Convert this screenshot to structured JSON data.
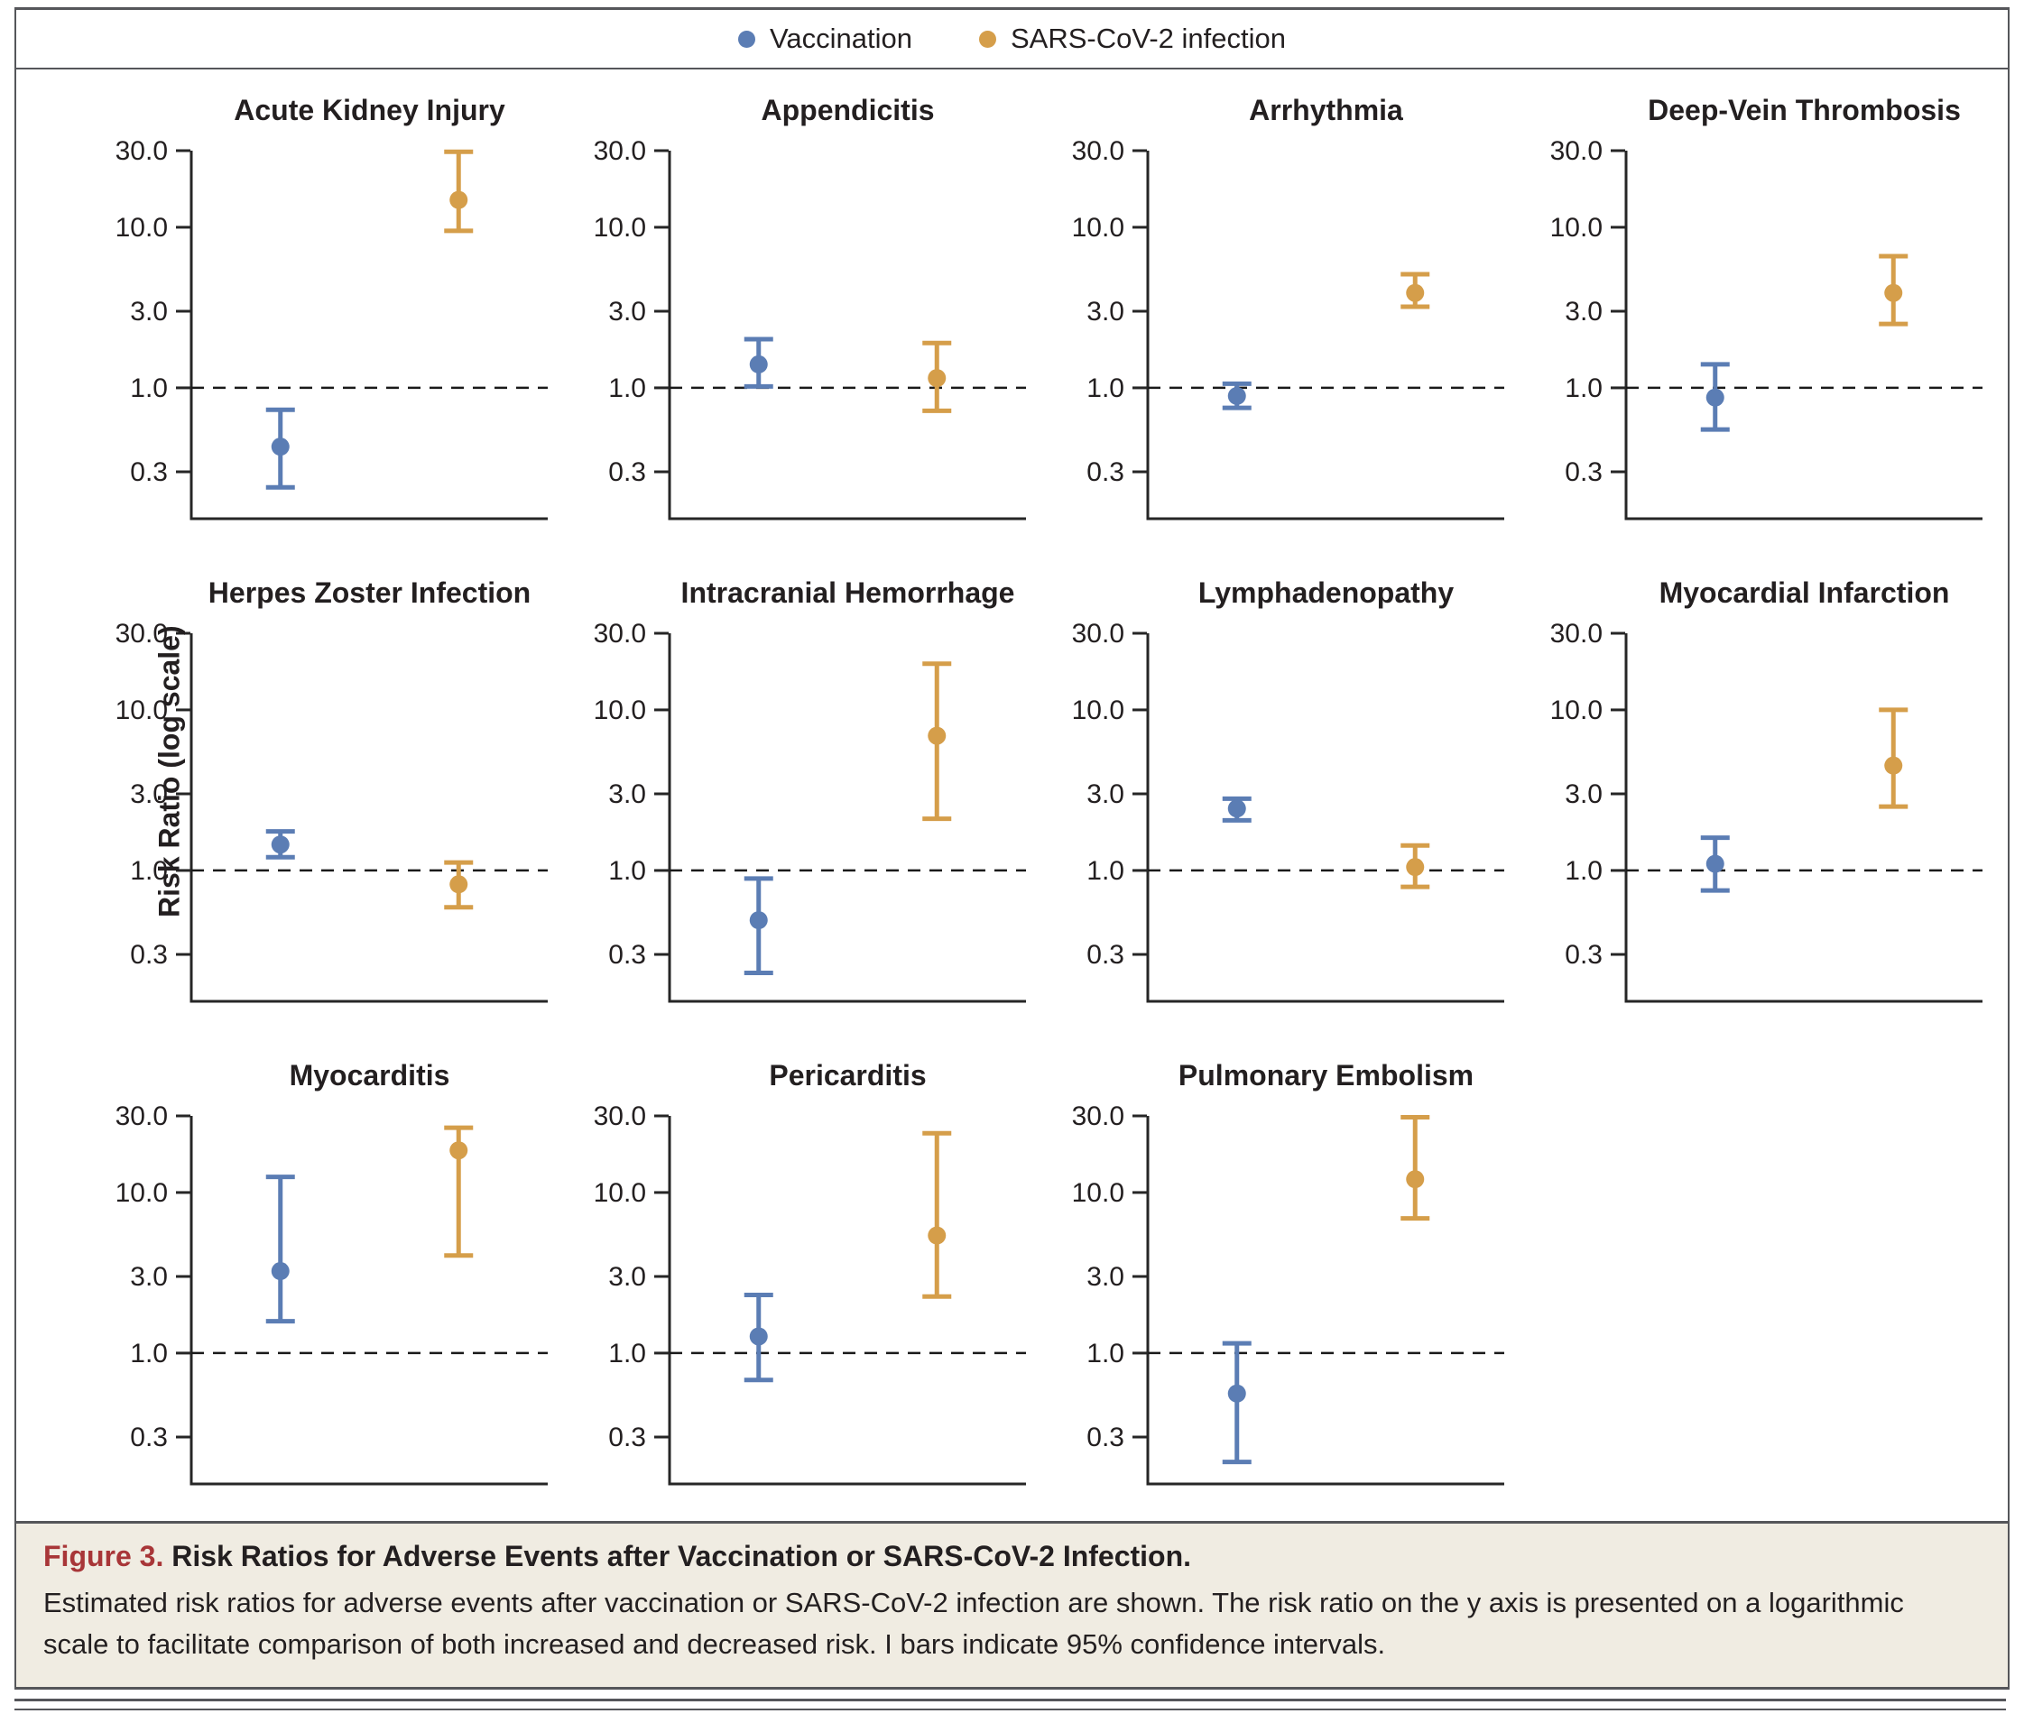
{
  "figure": {
    "legend": [
      {
        "label": "Vaccination"
      },
      {
        "label": "SARS-CoV-2 infection"
      }
    ],
    "y_axis_label": "Risk Ratio (log scale)",
    "caption": {
      "label": "Figure 3.",
      "title": "Risk Ratios for Adverse Events after Vaccination or SARS-CoV-2 Infection.",
      "body": "Estimated risk ratios for adverse events after vaccination or SARS-CoV-2 infection are shown. The risk ratio on the y axis is presented on a logarithmic scale to facilitate comparison of both increased and decreased risk. I bars indicate 95% confidence intervals."
    }
  },
  "chart_data": {
    "type": "scatter",
    "subtype": "point-estimates-with-95ci-error-bars",
    "y_scale": "log",
    "y_max": 30,
    "y_ticks": [
      30.0,
      10.0,
      3.0,
      1.0,
      0.3
    ],
    "y_tick_labels": [
      "30.0",
      "10.0",
      "3.0",
      "1.0",
      "0.3"
    ],
    "reference_line": 1.0,
    "ylabel": "Risk Ratio (log scale)",
    "legend_position": "top-center",
    "grid": "off",
    "series_names": [
      "Vaccination",
      "SARS-CoV-2 infection"
    ],
    "colors": {
      "vaccination": "#5b7db4",
      "infection": "#d59e4a",
      "axis": "#262626"
    },
    "panels": [
      {
        "title": "Acute Kidney Injury",
        "vaccination": {
          "rr": 0.43,
          "ci": [
            0.24,
            0.73
          ]
        },
        "infection": {
          "rr": 14.8,
          "ci": [
            9.5,
            29.5
          ]
        }
      },
      {
        "title": "Appendicitis",
        "vaccination": {
          "rr": 1.4,
          "ci": [
            1.02,
            2.01
          ]
        },
        "infection": {
          "rr": 1.15,
          "ci": [
            0.72,
            1.9
          ]
        }
      },
      {
        "title": "Arrhythmia",
        "vaccination": {
          "rr": 0.89,
          "ci": [
            0.75,
            1.06
          ]
        },
        "infection": {
          "rr": 3.9,
          "ci": [
            3.2,
            5.1
          ]
        }
      },
      {
        "title": "Deep-Vein Thrombosis",
        "vaccination": {
          "rr": 0.87,
          "ci": [
            0.55,
            1.4
          ]
        },
        "infection": {
          "rr": 3.9,
          "ci": [
            2.5,
            6.6
          ]
        }
      },
      {
        "title": "Herpes Zoster Infection",
        "vaccination": {
          "rr": 1.45,
          "ci": [
            1.21,
            1.75
          ]
        },
        "infection": {
          "rr": 0.82,
          "ci": [
            0.59,
            1.12
          ]
        }
      },
      {
        "title": "Intracranial Hemorrhage",
        "vaccination": {
          "rr": 0.49,
          "ci": [
            0.23,
            0.89
          ]
        },
        "infection": {
          "rr": 6.9,
          "ci": [
            2.1,
            19.4
          ]
        }
      },
      {
        "title": "Lymphadenopathy",
        "vaccination": {
          "rr": 2.43,
          "ci": [
            2.05,
            2.8
          ]
        },
        "infection": {
          "rr": 1.05,
          "ci": [
            0.79,
            1.43
          ]
        }
      },
      {
        "title": "Myocardial Infarction",
        "vaccination": {
          "rr": 1.1,
          "ci": [
            0.75,
            1.6
          ]
        },
        "infection": {
          "rr": 4.5,
          "ci": [
            2.5,
            10.0
          ]
        }
      },
      {
        "title": "Myocarditis",
        "vaccination": {
          "rr": 3.24,
          "ci": [
            1.58,
            12.5
          ]
        },
        "infection": {
          "rr": 18.3,
          "ci": [
            4.05,
            25.3
          ]
        }
      },
      {
        "title": "Pericarditis",
        "vaccination": {
          "rr": 1.27,
          "ci": [
            0.68,
            2.3
          ]
        },
        "infection": {
          "rr": 5.4,
          "ci": [
            2.25,
            23.4
          ]
        }
      },
      {
        "title": "Pulmonary Embolism",
        "vaccination": {
          "rr": 0.56,
          "ci": [
            0.21,
            1.15
          ]
        },
        "infection": {
          "rr": 12.1,
          "ci": [
            6.9,
            29.4
          ]
        }
      }
    ]
  }
}
